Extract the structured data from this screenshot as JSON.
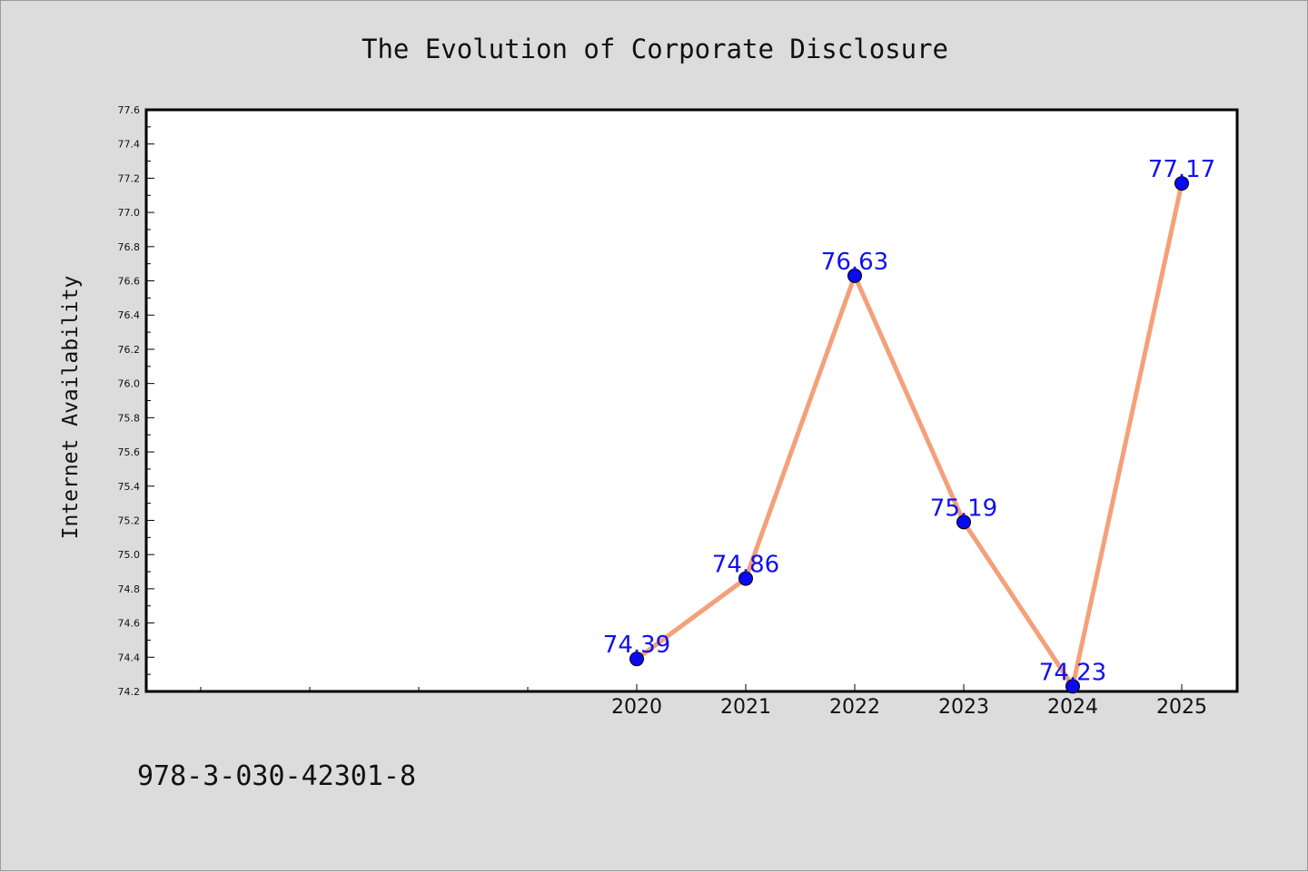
{
  "chart_data": {
    "type": "line",
    "title": "The Evolution of Corporate Disclosure",
    "xlabel": "",
    "ylabel": "Internet Availability",
    "x": [
      "2020",
      "2021",
      "2022",
      "2023",
      "2024",
      "2025"
    ],
    "series": [
      {
        "values": [
          74.39,
          74.86,
          76.63,
          75.19,
          74.23,
          77.17
        ]
      }
    ],
    "data_labels": [
      "74.39",
      "74.86",
      "76.63",
      "75.19",
      "74.23",
      "77.17"
    ],
    "ylim": [
      74.2,
      77.6
    ],
    "yticks": [
      "74.2",
      "74.4",
      "74.6",
      "74.8",
      "75.0",
      "75.2",
      "75.4",
      "75.6",
      "75.8",
      "76.0",
      "76.2",
      "76.4",
      "76.6",
      "76.8",
      "77.0",
      "77.2",
      "77.4",
      "77.6"
    ],
    "grid": false,
    "legend": "none",
    "colors": {
      "line": "#f4a07a",
      "marker": "#0a0aee",
      "label": "#1010ee",
      "plot_bg": "#ffffff",
      "figure_bg": "#dcdcdc"
    }
  },
  "footer_text": "978-3-030-42301-8"
}
